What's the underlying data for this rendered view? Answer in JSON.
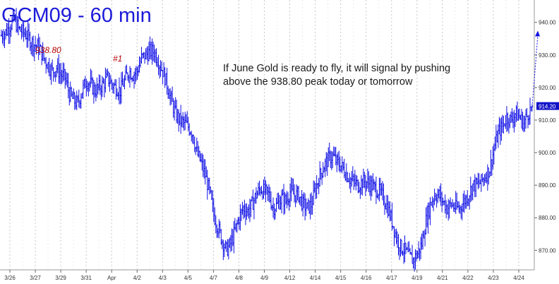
{
  "chart_data": {
    "type": "bar",
    "style": "OHLC price bars",
    "title": "GCM09 - 60 min",
    "symbol": "GCM09",
    "interval": "60 min",
    "xlabel": "",
    "ylabel": "",
    "ylim": [
      864,
      946
    ],
    "y_ticks": [
      870,
      880,
      890,
      900,
      910,
      920,
      930,
      940
    ],
    "y_tick_labels": [
      "870.00",
      "880.00",
      "890.00",
      "900.00",
      "910.00",
      "920.00",
      "930.00",
      "940.00"
    ],
    "x_tick_labels": [
      "3/26",
      "3/27",
      "3/29",
      "3/31",
      "Apr",
      "4/2",
      "4/3",
      "4/5",
      "4/7",
      "4/8",
      "4/9",
      "4/12",
      "4/14",
      "4/15",
      "4/16",
      "4/17",
      "4/19",
      "4/21",
      "4/22",
      "4/23",
      "4/24"
    ],
    "grid": true,
    "grid_style": "vertical dashed lines",
    "last_price": 914.2,
    "last_price_label": "914.20",
    "projection_target": 937.0,
    "annotations": {
      "peak_label": "938.80",
      "peak_marker": "#1",
      "note_line1": "If June Gold is ready to fly, it will signal by pushing",
      "note_line2": "above the 938.80 peak today or tomorrow"
    },
    "series": [
      {
        "closes": [
          936,
          937,
          939,
          941,
          938,
          937,
          936,
          934,
          933,
          932,
          929,
          927,
          925,
          926,
          924,
          923,
          918,
          916,
          915,
          919,
          922,
          921,
          919,
          920,
          921,
          923,
          921,
          920,
          919,
          922,
          925,
          924,
          925,
          929,
          930,
          931,
          931,
          928,
          925,
          921,
          916,
          912,
          910,
          909,
          908,
          906,
          900,
          897,
          893,
          888,
          881,
          877,
          873,
          870,
          872,
          876,
          880,
          883,
          882,
          884,
          887,
          889,
          888,
          887,
          883,
          884,
          886,
          885,
          888,
          887,
          887,
          884,
          883,
          884,
          889,
          893,
          896,
          898,
          899,
          897,
          896,
          894,
          892,
          891,
          890,
          891,
          891,
          890,
          889,
          888,
          886,
          883,
          879,
          874,
          871,
          870,
          868,
          867,
          869,
          872,
          879,
          884,
          887,
          887,
          885,
          883,
          884,
          883,
          883,
          885,
          887,
          890,
          890,
          891,
          893,
          895,
          901,
          906,
          908,
          911,
          910,
          912,
          911,
          909,
          912,
          914.2
        ]
      }
    ]
  },
  "colors": {
    "bars": "#1010e6",
    "title": "#1b1bd9",
    "grid": "#c8c8c8",
    "label_red": "#b00000",
    "price_tag_bg": "#1010c8"
  }
}
